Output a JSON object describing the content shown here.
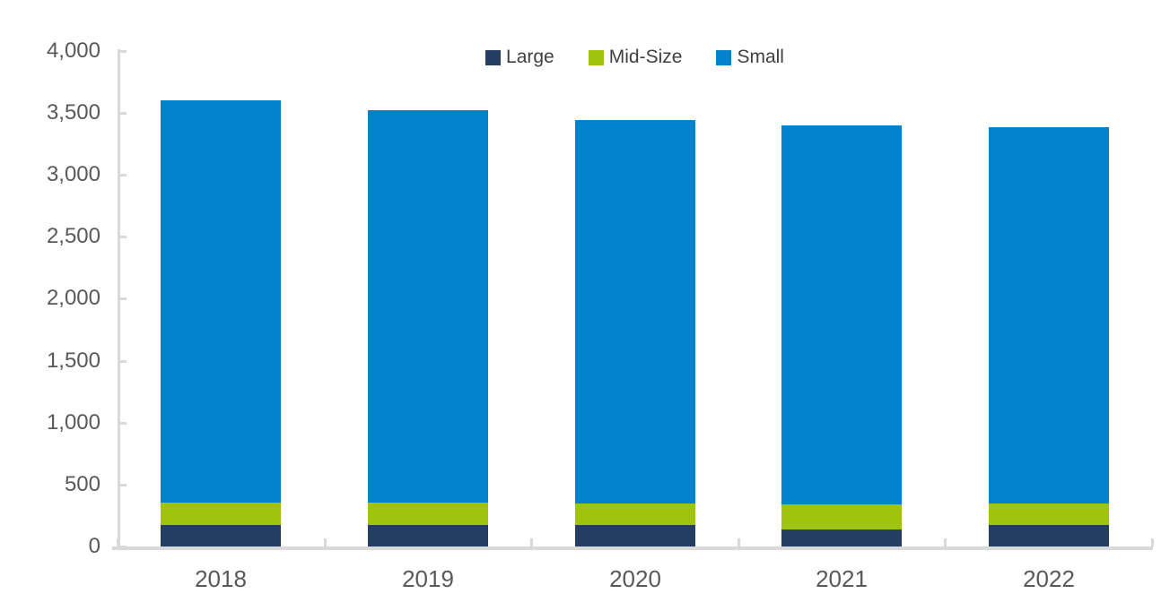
{
  "chart_data": {
    "type": "bar",
    "stacked": true,
    "title": "",
    "categories": [
      "2018",
      "2019",
      "2020",
      "2021",
      "2022"
    ],
    "series": [
      {
        "name": "Large",
        "color": "#243E62",
        "values": [
          170,
          170,
          170,
          140,
          170
        ]
      },
      {
        "name": "Mid-Size",
        "color": "#A0C40D",
        "values": [
          185,
          185,
          175,
          200,
          175
        ]
      },
      {
        "name": "Small",
        "color": "#0082CD",
        "values": [
          3245,
          3165,
          3100,
          3060,
          3040
        ]
      }
    ],
    "stack_totals": [
      3600,
      3520,
      3445,
      3400,
      3385
    ],
    "ylim": [
      0,
      4000
    ],
    "ytick_step": 500,
    "ytick_labels": [
      "0",
      "500",
      "1,000",
      "1,500",
      "2,000",
      "2,500",
      "3,000",
      "3,500",
      "4,000"
    ],
    "xlabel": "",
    "ylabel": "",
    "grid": false,
    "legend_position": "top-center",
    "colors": {
      "axis": "#D9D9D9",
      "axis_label": "#595959",
      "legend_text": "#404040",
      "background": "#FFFFFF"
    }
  }
}
